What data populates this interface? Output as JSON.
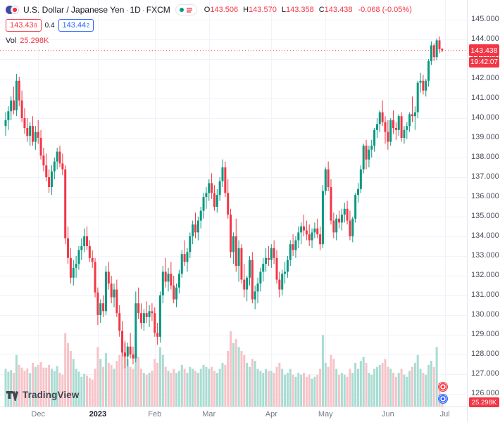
{
  "colors": {
    "up": "#089981",
    "down": "#f23645",
    "vol_up": "#a9dcd2",
    "vol_down": "#f7c3c8",
    "grid": "#f0f3fa",
    "axis_text": "#4a4e59",
    "badge_red": "#f23645",
    "buy_blue": "#2962ff"
  },
  "legend": {
    "symbol": "U.S. Dollar / Japanese Yen",
    "sep": "·",
    "sep2": "·",
    "timeframe": "1D",
    "exchange": "FXCM",
    "ohlc": {
      "o_label": "O",
      "o": "143.506",
      "h_label": "H",
      "h": "143.570",
      "l_label": "L",
      "l": "143.358",
      "c_label": "C",
      "c": "143.438",
      "change": "-0.068 (-0.05%)"
    },
    "sell_price": "143.43",
    "sell_sup": "8",
    "spread": "0.4",
    "buy_price": "143.44",
    "buy_sup": "2",
    "vol_label": "Vol",
    "vol_value": "25.298K"
  },
  "price_axis": {
    "labels": [
      "145.000",
      "144.000",
      "143.000",
      "142.000",
      "141.000",
      "140.000",
      "139.000",
      "138.000",
      "137.000",
      "136.000",
      "135.000",
      "134.000",
      "133.000",
      "132.000",
      "131.000",
      "130.000",
      "129.000",
      "128.000",
      "127.000",
      "126.000"
    ],
    "last_price": "143.438",
    "countdown": "19:42:07",
    "volume_badge": "25.298K"
  },
  "time_axis": {
    "ticks": [
      {
        "label": "Dec",
        "index": 12
      },
      {
        "label": "2023",
        "index": 34,
        "year": true
      },
      {
        "label": "Feb",
        "index": 55
      },
      {
        "label": "Mar",
        "index": 75
      },
      {
        "label": "Apr",
        "index": 98
      },
      {
        "label": "May",
        "index": 118
      },
      {
        "label": "Jun",
        "index": 141
      },
      {
        "label": "Jul",
        "index": 162
      }
    ]
  },
  "logo": {
    "text": "TradingView"
  },
  "chart_data": {
    "type": "candlestick",
    "symbol": "USD/JPY",
    "title": "U.S. Dollar / Japanese Yen, 1D, FXCM",
    "timeframe": "1D",
    "exchange": "FXCM",
    "ylim": [
      125.357,
      146.0
    ],
    "grid": true,
    "last_close": 143.438,
    "last_ohlc": {
      "open": 143.506,
      "high": 143.57,
      "low": 143.358,
      "close": 143.438,
      "change": -0.068,
      "change_pct": -0.05
    },
    "volume_last": 25.298,
    "volume_unit": "K",
    "vol_max": 195,
    "x_months": [
      "Dec",
      "2023",
      "Feb",
      "Mar",
      "Apr",
      "May",
      "Jun",
      "Jul"
    ],
    "candles_format": [
      "open",
      "high",
      "low",
      "close",
      "volume_K"
    ],
    "candles": [
      [
        139.6,
        140.3,
        139.1,
        139.9,
        95
      ],
      [
        139.9,
        140.6,
        139.4,
        140.35,
        88
      ],
      [
        140.35,
        141.1,
        139.9,
        140.9,
        92
      ],
      [
        140.9,
        141.6,
        140.2,
        140.4,
        85
      ],
      [
        140.4,
        142.25,
        140.1,
        141.9,
        130
      ],
      [
        141.9,
        142.1,
        140.6,
        140.9,
        105
      ],
      [
        140.9,
        141.4,
        139.8,
        140.0,
        98
      ],
      [
        140.0,
        140.5,
        139.2,
        139.5,
        90
      ],
      [
        139.5,
        140.0,
        138.8,
        139.1,
        96
      ],
      [
        139.1,
        139.8,
        138.6,
        139.6,
        84
      ],
      [
        139.6,
        140.1,
        138.6,
        138.8,
        110
      ],
      [
        138.8,
        139.6,
        138.4,
        139.3,
        100
      ],
      [
        139.3,
        139.9,
        138.7,
        139.0,
        105
      ],
      [
        139.0,
        139.4,
        137.9,
        138.1,
        112
      ],
      [
        138.1,
        138.5,
        137.3,
        137.6,
        98
      ],
      [
        137.6,
        138.2,
        136.8,
        137.0,
        98
      ],
      [
        137.0,
        137.4,
        136.2,
        136.5,
        105
      ],
      [
        136.5,
        137.6,
        136.1,
        137.3,
        95
      ],
      [
        137.3,
        138.0,
        136.9,
        137.8,
        90
      ],
      [
        137.8,
        138.5,
        137.4,
        138.3,
        102
      ],
      [
        138.3,
        138.6,
        137.5,
        137.7,
        85
      ],
      [
        137.7,
        138.2,
        137.1,
        137.4,
        80
      ],
      [
        137.4,
        137.6,
        133.6,
        133.9,
        185
      ],
      [
        133.9,
        134.5,
        132.6,
        132.9,
        160
      ],
      [
        132.9,
        133.4,
        131.6,
        131.9,
        140
      ],
      [
        131.9,
        132.8,
        131.5,
        132.4,
        120
      ],
      [
        132.4,
        133.0,
        131.9,
        132.6,
        95
      ],
      [
        132.6,
        133.5,
        132.3,
        133.3,
        88
      ],
      [
        133.3,
        133.9,
        132.8,
        133.5,
        75
      ],
      [
        133.5,
        134.4,
        133.2,
        134.0,
        82
      ],
      [
        134.0,
        134.5,
        133.3,
        133.5,
        78
      ],
      [
        133.5,
        133.8,
        132.7,
        132.9,
        72
      ],
      [
        132.9,
        133.3,
        132.4,
        132.7,
        68
      ],
      [
        132.7,
        132.9,
        130.9,
        131.15,
        95
      ],
      [
        131.15,
        131.4,
        129.5,
        130.0,
        150
      ],
      [
        130.0,
        130.8,
        129.6,
        130.6,
        120
      ],
      [
        130.6,
        131.0,
        129.9,
        130.2,
        100
      ],
      [
        130.2,
        132.5,
        130.0,
        132.2,
        135
      ],
      [
        132.2,
        132.7,
        131.3,
        131.6,
        110
      ],
      [
        131.6,
        132.0,
        130.6,
        130.9,
        105
      ],
      [
        130.9,
        131.6,
        130.4,
        131.3,
        95
      ],
      [
        131.3,
        131.8,
        129.9,
        130.1,
        115
      ],
      [
        130.1,
        130.5,
        128.9,
        129.2,
        130
      ],
      [
        129.2,
        129.7,
        127.9,
        128.1,
        145
      ],
      [
        128.1,
        128.7,
        127.3,
        127.9,
        160
      ],
      [
        127.9,
        128.6,
        127.4,
        128.4,
        120
      ],
      [
        128.4,
        129.1,
        127.8,
        128.0,
        100
      ],
      [
        128.0,
        128.4,
        127.5,
        127.8,
        95
      ],
      [
        127.8,
        131.2,
        127.6,
        130.6,
        170
      ],
      [
        130.6,
        131.4,
        129.8,
        130.1,
        125
      ],
      [
        130.1,
        130.6,
        129.3,
        129.6,
        95
      ],
      [
        129.6,
        130.3,
        129.2,
        130.1,
        85
      ],
      [
        130.1,
        130.7,
        129.6,
        129.9,
        80
      ],
      [
        129.9,
        130.5,
        129.4,
        130.2,
        85
      ],
      [
        130.2,
        130.6,
        129.7,
        130.1,
        90
      ],
      [
        130.1,
        130.4,
        128.9,
        129.1,
        120
      ],
      [
        129.1,
        129.6,
        128.5,
        128.9,
        110
      ],
      [
        128.9,
        131.2,
        128.6,
        131.0,
        150
      ],
      [
        131.0,
        132.5,
        130.6,
        132.2,
        130
      ],
      [
        132.2,
        132.9,
        131.4,
        131.7,
        100
      ],
      [
        131.7,
        132.4,
        131.2,
        132.1,
        90
      ],
      [
        132.1,
        132.7,
        131.3,
        131.5,
        85
      ],
      [
        131.5,
        132.0,
        130.6,
        130.8,
        95
      ],
      [
        130.8,
        131.6,
        130.4,
        131.4,
        85
      ],
      [
        131.4,
        132.3,
        131.1,
        132.1,
        90
      ],
      [
        132.1,
        133.3,
        131.9,
        133.1,
        105
      ],
      [
        133.1,
        133.8,
        132.5,
        132.7,
        95
      ],
      [
        132.7,
        133.4,
        132.2,
        133.2,
        85
      ],
      [
        133.2,
        134.2,
        132.9,
        134.0,
        100
      ],
      [
        134.0,
        134.8,
        133.6,
        134.6,
        95
      ],
      [
        134.6,
        135.2,
        133.9,
        134.2,
        90
      ],
      [
        134.2,
        135.0,
        133.8,
        134.8,
        85
      ],
      [
        134.8,
        135.5,
        134.4,
        135.3,
        95
      ],
      [
        135.3,
        136.2,
        134.9,
        136.0,
        105
      ],
      [
        136.0,
        136.5,
        135.4,
        136.2,
        100
      ],
      [
        136.2,
        136.9,
        135.8,
        136.7,
        95
      ],
      [
        136.7,
        137.2,
        135.9,
        136.2,
        100
      ],
      [
        136.2,
        136.6,
        135.3,
        135.5,
        90
      ],
      [
        135.5,
        136.4,
        135.2,
        136.1,
        85
      ],
      [
        136.1,
        137.0,
        135.8,
        136.8,
        95
      ],
      [
        136.8,
        137.9,
        136.5,
        137.5,
        110
      ],
      [
        137.5,
        137.8,
        136.0,
        136.2,
        105
      ],
      [
        136.2,
        136.9,
        134.9,
        135.1,
        140
      ],
      [
        135.1,
        135.4,
        132.9,
        133.2,
        190
      ],
      [
        133.2,
        134.2,
        132.6,
        134.0,
        160
      ],
      [
        134.0,
        134.9,
        132.2,
        132.5,
        170
      ],
      [
        132.5,
        133.8,
        131.7,
        133.4,
        150
      ],
      [
        133.4,
        133.6,
        131.6,
        131.8,
        140
      ],
      [
        131.8,
        132.6,
        130.9,
        131.3,
        130
      ],
      [
        131.3,
        132.0,
        130.7,
        131.9,
        110
      ],
      [
        131.9,
        133.0,
        131.5,
        132.8,
        100
      ],
      [
        132.8,
        133.2,
        130.6,
        130.8,
        120
      ],
      [
        130.8,
        131.5,
        130.3,
        131.2,
        115
      ],
      [
        131.2,
        131.9,
        130.6,
        131.6,
        95
      ],
      [
        131.6,
        132.4,
        131.2,
        132.2,
        90
      ],
      [
        132.2,
        132.9,
        131.7,
        132.6,
        85
      ],
      [
        132.6,
        133.4,
        132.2,
        132.9,
        95
      ],
      [
        132.9,
        133.5,
        132.5,
        132.8,
        90
      ],
      [
        132.8,
        133.6,
        132.4,
        133.4,
        90
      ],
      [
        133.4,
        133.8,
        132.6,
        132.9,
        85
      ],
      [
        132.9,
        133.3,
        131.6,
        131.8,
        100
      ],
      [
        131.8,
        132.2,
        130.9,
        131.3,
        110
      ],
      [
        131.3,
        132.3,
        131.0,
        132.1,
        95
      ],
      [
        132.1,
        132.7,
        131.6,
        132.2,
        80
      ],
      [
        132.2,
        133.0,
        131.9,
        132.8,
        85
      ],
      [
        132.8,
        133.8,
        132.5,
        133.6,
        95
      ],
      [
        133.6,
        134.1,
        133.0,
        133.3,
        80
      ],
      [
        133.3,
        134.0,
        132.9,
        133.8,
        75
      ],
      [
        133.8,
        134.5,
        133.4,
        134.2,
        85
      ],
      [
        134.2,
        134.7,
        133.6,
        134.5,
        80
      ],
      [
        134.5,
        135.1,
        134.0,
        134.3,
        85
      ],
      [
        134.3,
        134.8,
        133.8,
        134.1,
        75
      ],
      [
        134.1,
        134.6,
        133.5,
        133.8,
        80
      ],
      [
        133.8,
        134.4,
        133.4,
        134.2,
        70
      ],
      [
        134.2,
        134.7,
        133.9,
        134.4,
        75
      ],
      [
        134.4,
        134.9,
        133.9,
        134.1,
        80
      ],
      [
        134.1,
        134.5,
        133.3,
        133.6,
        95
      ],
      [
        133.6,
        136.6,
        133.4,
        136.3,
        180
      ],
      [
        136.3,
        137.5,
        136.1,
        137.4,
        110
      ],
      [
        137.4,
        137.8,
        136.3,
        136.5,
        100
      ],
      [
        136.5,
        136.9,
        134.6,
        134.8,
        130
      ],
      [
        134.8,
        135.2,
        133.9,
        134.2,
        120
      ],
      [
        134.2,
        135.1,
        133.8,
        134.9,
        95
      ],
      [
        134.9,
        135.3,
        134.4,
        134.7,
        80
      ],
      [
        134.7,
        135.4,
        134.3,
        135.1,
        85
      ],
      [
        135.1,
        135.7,
        134.7,
        135.4,
        80
      ],
      [
        135.4,
        135.8,
        134.6,
        134.8,
        75
      ],
      [
        134.8,
        135.3,
        133.8,
        134.0,
        95
      ],
      [
        134.0,
        135.0,
        133.7,
        134.9,
        85
      ],
      [
        134.9,
        136.2,
        134.7,
        136.1,
        110
      ],
      [
        136.1,
        136.7,
        135.7,
        136.4,
        95
      ],
      [
        136.4,
        137.6,
        136.2,
        137.4,
        115
      ],
      [
        137.4,
        138.7,
        137.2,
        138.6,
        125
      ],
      [
        138.6,
        138.9,
        137.4,
        137.9,
        110
      ],
      [
        137.9,
        138.6,
        137.5,
        138.4,
        85
      ],
      [
        138.4,
        138.9,
        138.0,
        138.6,
        80
      ],
      [
        138.6,
        139.5,
        138.3,
        139.4,
        95
      ],
      [
        139.4,
        140.0,
        139.0,
        139.7,
        100
      ],
      [
        139.7,
        140.4,
        139.3,
        140.3,
        105
      ],
      [
        140.3,
        140.9,
        139.6,
        139.8,
        110
      ],
      [
        139.8,
        140.1,
        138.7,
        139.3,
        120
      ],
      [
        139.3,
        139.9,
        138.4,
        138.8,
        100
      ],
      [
        138.8,
        140.0,
        138.6,
        139.9,
        95
      ],
      [
        139.9,
        140.4,
        139.2,
        139.5,
        85
      ],
      [
        139.5,
        139.8,
        138.9,
        139.4,
        75
      ],
      [
        139.4,
        140.2,
        139.1,
        140.1,
        85
      ],
      [
        140.1,
        140.3,
        138.8,
        139.0,
        95
      ],
      [
        139.0,
        139.6,
        138.7,
        139.4,
        80
      ],
      [
        139.4,
        139.8,
        138.95,
        139.6,
        75
      ],
      [
        139.6,
        140.3,
        139.3,
        140.2,
        90
      ],
      [
        140.2,
        141.1,
        139.8,
        140.1,
        100
      ],
      [
        140.1,
        140.6,
        139.4,
        140.3,
        110
      ],
      [
        140.3,
        141.9,
        140.0,
        141.8,
        130
      ],
      [
        141.8,
        142.3,
        141.3,
        141.9,
        95
      ],
      [
        141.9,
        142.2,
        141.2,
        141.4,
        85
      ],
      [
        141.4,
        142.0,
        141.1,
        141.9,
        80
      ],
      [
        141.9,
        143.0,
        141.6,
        142.9,
        105
      ],
      [
        142.9,
        143.9,
        142.7,
        143.7,
        115
      ],
      [
        143.7,
        143.8,
        142.9,
        143.1,
        100
      ],
      [
        143.1,
        144.05,
        142.95,
        143.95,
        150
      ],
      [
        143.95,
        144.15,
        143.3,
        143.5,
        60
      ],
      [
        143.506,
        143.57,
        143.358,
        143.438,
        25.298
      ]
    ]
  }
}
